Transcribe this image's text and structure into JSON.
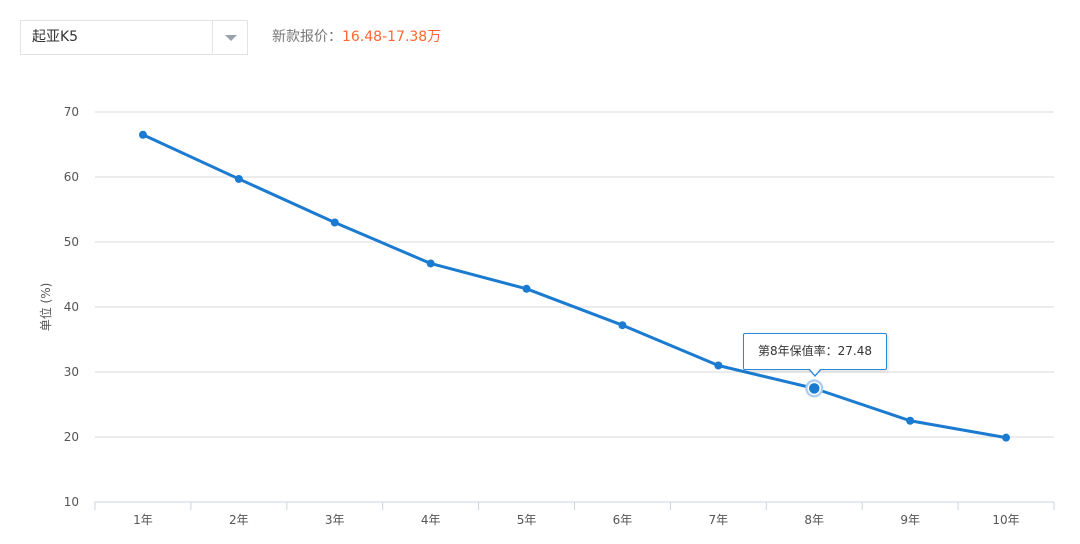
{
  "selector": {
    "value": "起亚K5"
  },
  "price": {
    "label": "新款报价：",
    "value": "16.48-17.38万"
  },
  "chart_data": {
    "type": "line",
    "categories": [
      "1年",
      "2年",
      "3年",
      "4年",
      "5年",
      "6年",
      "7年",
      "8年",
      "9年",
      "10年"
    ],
    "series": [
      {
        "values": [
          66.5,
          59.7,
          53.0,
          46.7,
          42.8,
          37.2,
          31.0,
          27.48,
          22.5,
          19.9
        ],
        "color": "#1a7bd0"
      }
    ],
    "ylabel": "单位 (%)",
    "ylim": [
      10,
      70
    ],
    "yticks": [
      10,
      20,
      30,
      40,
      50,
      60,
      70
    ],
    "grid": true,
    "highlight_index": 7,
    "tooltip": {
      "label": "第8年保值率：",
      "value": "27.48"
    }
  }
}
